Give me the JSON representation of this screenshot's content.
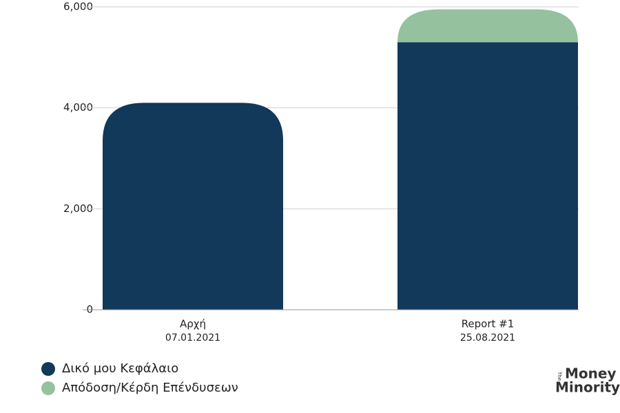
{
  "chart_data": {
    "type": "stacked-bar",
    "categories": [
      [
        "Αρχή",
        "07.01.2021"
      ],
      [
        "Report #1",
        "25.08.2021"
      ]
    ],
    "series": [
      {
        "name": "Δικό μου Κεφάλαιο",
        "color": "#12385a",
        "values": [
          4100,
          5300
        ]
      },
      {
        "name": "Απόδοση/Κέρδη Επένδυσεων",
        "color": "#95c19e",
        "values": [
          null,
          650
        ]
      }
    ],
    "ylim": [
      0,
      6000
    ],
    "yticks": [
      0,
      {
        "value": 2000,
        "label": "2,000"
      },
      {
        "value": 4000,
        "label": "4,000"
      },
      {
        "value": 6000,
        "label": "6,000"
      }
    ],
    "grid": true,
    "legend": "bottom-left"
  },
  "logo": {
    "small": "The",
    "line1": "Money",
    "line2": "Minority"
  }
}
